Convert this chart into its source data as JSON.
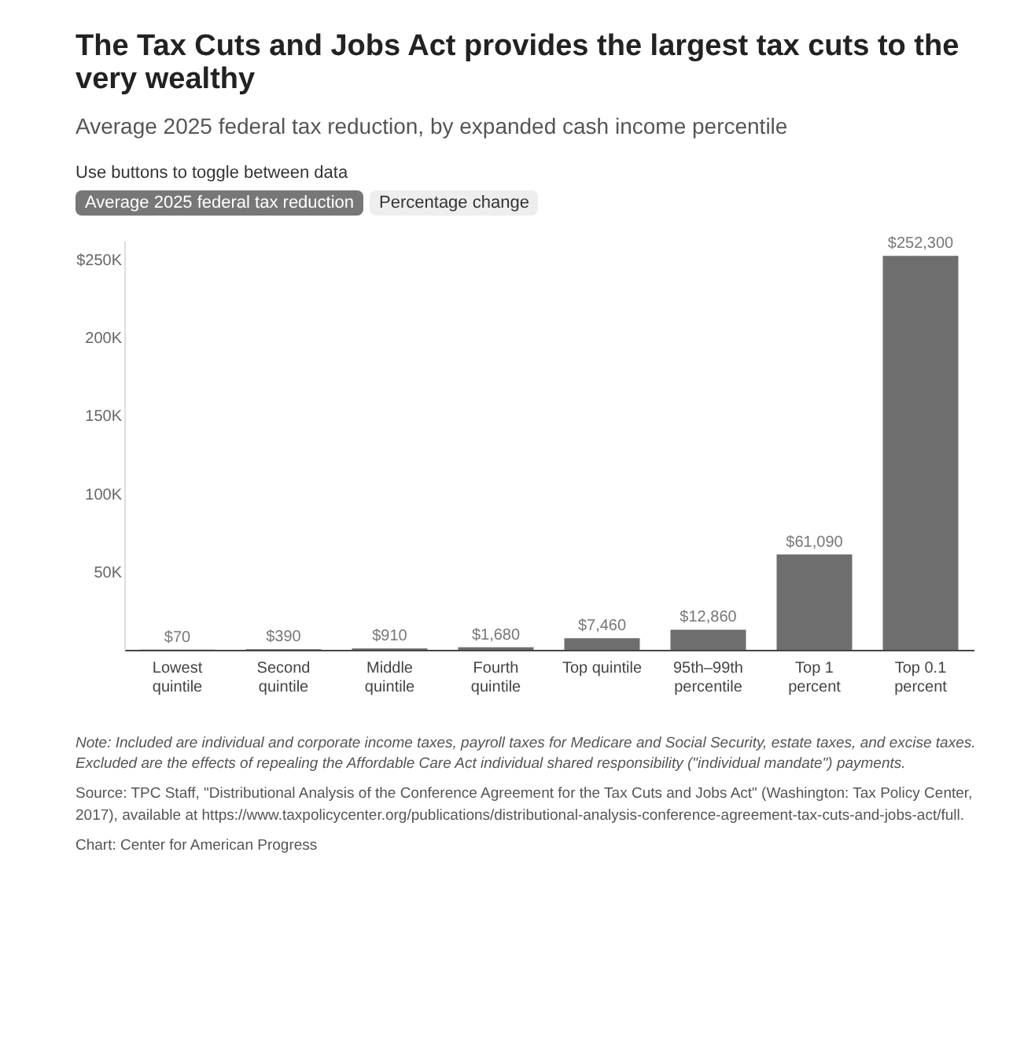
{
  "chart_data": {
    "type": "bar",
    "title": "The Tax Cuts and Jobs Act provides the largest tax cuts to the very wealthy",
    "subtitle": "Average 2025 federal tax reduction, by expanded cash income percentile",
    "categories": [
      "Lowest quintile",
      "Second quintile",
      "Middle quintile",
      "Fourth quintile",
      "Top quintile",
      "95th–99th percentile",
      "Top 1 percent",
      "Top 0.1 percent"
    ],
    "values": [
      70,
      390,
      910,
      1680,
      7460,
      12860,
      61090,
      252300
    ],
    "value_labels": [
      "$70",
      "$390",
      "$910",
      "$1,680",
      "$7,460",
      "$12,860",
      "$61,090",
      "$252,300"
    ],
    "color": "#6e6e6e",
    "ylim": [
      0,
      262000
    ],
    "yticks": [
      {
        "value": 50000,
        "label": "50K"
      },
      {
        "value": 100000,
        "label": "100K"
      },
      {
        "value": 150000,
        "label": "150K"
      },
      {
        "value": 200000,
        "label": "200K"
      },
      {
        "value": 250000,
        "label": "$250K"
      }
    ],
    "grid": false,
    "annotations": [
      "Use buttons to toggle between data",
      "Average 2025 federal tax reduction",
      "Percentage change",
      "Note: Included are individual and corporate income taxes, payroll taxes for Medicare and Social Security, estate taxes, and excise taxes. Excluded are the effects of repealing the Affordable Care Act individual shared responsibility (\"individual mandate\") payments.",
      "Source: TPC Staff, \"Distributional Analysis of the Conference Agreement for the Tax Cuts and Jobs Act\" (Washington: Tax Policy Center, 2017), available at https://www.taxpolicycenter.org/publications/distributional-analysis-conference-agreement-tax-cuts-and-jobs-act/full.",
      "Chart: Center for American Progress"
    ]
  }
}
